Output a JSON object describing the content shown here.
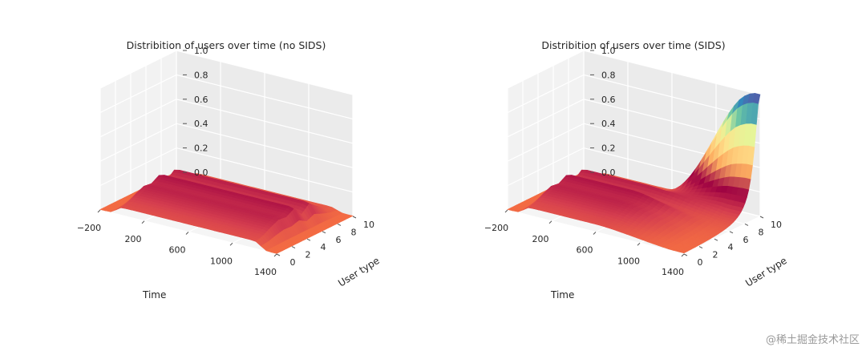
{
  "chart_data": [
    {
      "type": "surface3d",
      "title": "Distribition of users over time (no SIDS)",
      "xlabel": "Time",
      "ylabel": "User type",
      "zlabel": "",
      "x_ticks": [
        "−200",
        "200",
        "600",
        "1000",
        "1400"
      ],
      "y_ticks": [
        "0",
        "2",
        "4",
        "6",
        "8",
        "10"
      ],
      "z_ticks": [
        "0.0",
        "0.2",
        "0.4",
        "0.6",
        "0.8",
        "1.0"
      ],
      "xlim": [
        -200,
        1400
      ],
      "ylim": [
        0,
        10
      ],
      "zlim": [
        0,
        1
      ],
      "colormap": "Spectral",
      "grid": true,
      "user_type_profile": [
        0.06,
        0.08,
        0.12,
        0.15,
        0.14,
        0.18,
        0.1,
        0.16,
        0.1,
        0.05,
        0.03
      ]
    },
    {
      "type": "surface3d",
      "title": "Distribition of users over time (SIDS)",
      "xlabel": "Time",
      "ylabel": "User type",
      "zlabel": "",
      "x_ticks": [
        "−200",
        "200",
        "600",
        "1000",
        "1400"
      ],
      "y_ticks": [
        "0",
        "2",
        "4",
        "6",
        "8",
        "10"
      ],
      "z_ticks": [
        "0.0",
        "0.2",
        "0.4",
        "0.6",
        "0.8",
        "1.0"
      ],
      "xlim": [
        -200,
        1400
      ],
      "ylim": [
        0,
        10
      ],
      "zlim": [
        0,
        1
      ],
      "colormap": "Spectral",
      "grid": true,
      "user_type_profile": [
        0.06,
        0.08,
        0.12,
        0.15,
        0.14,
        0.18,
        0.1,
        0.16,
        0.1,
        0.05,
        0.03
      ],
      "peak_user_type": 10,
      "peak_value": 1.0
    }
  ],
  "watermark": "@稀土掘金技术社区"
}
